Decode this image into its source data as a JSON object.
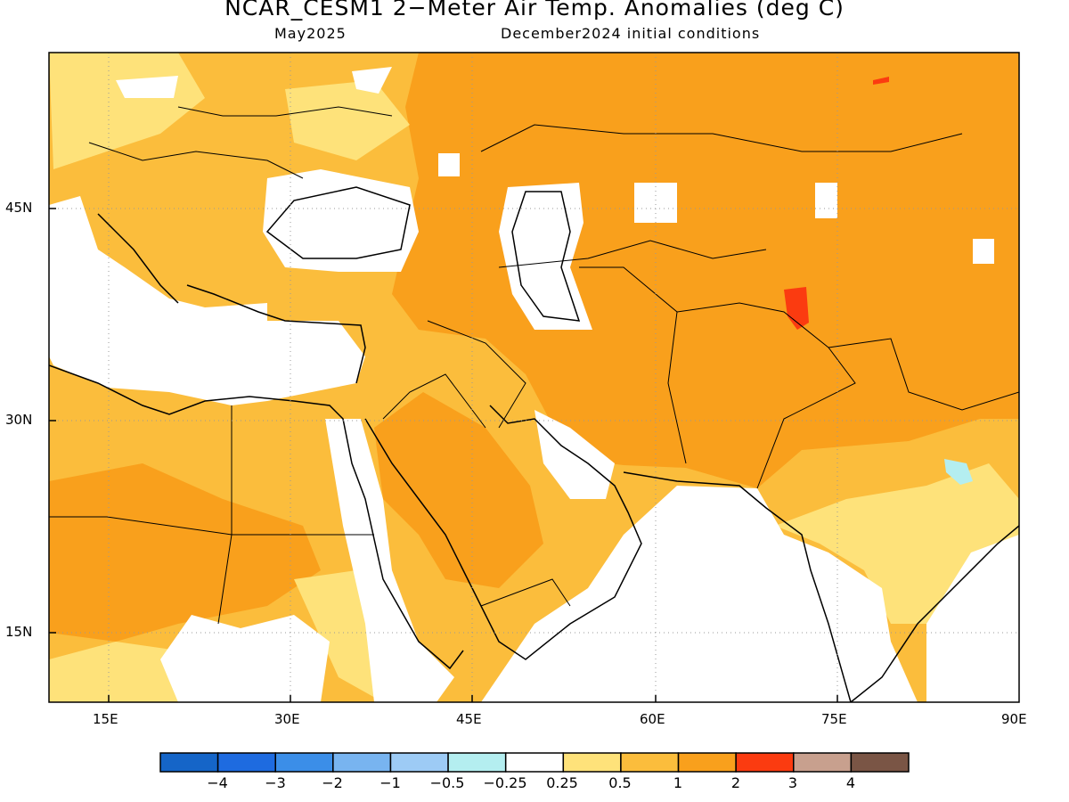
{
  "title": "NCAR_CESM1 2−Meter Air Temp. Anomalies (deg C)",
  "subtitle_left": "May2025",
  "subtitle_right": "December2024 initial conditions",
  "axes": {
    "x_ticks": [
      "15E",
      "30E",
      "45E",
      "60E",
      "75E",
      "90E"
    ],
    "y_ticks": [
      "45N",
      "30N",
      "15N"
    ],
    "lon_range": [
      10,
      90
    ],
    "lat_range": [
      10,
      56
    ]
  },
  "legend": {
    "colors": [
      "#1565c8",
      "#1e6be0",
      "#3b8ee8",
      "#78b4f0",
      "#9dcbf5",
      "#b4eef0",
      "#ffffff",
      "#fee27a",
      "#fbbd3c",
      "#f9a01c",
      "#fb3b10",
      "#c8a08e",
      "#7a5545"
    ],
    "labels": [
      "−4",
      "−3",
      "−2",
      "−1",
      "−0.5",
      "−0.25",
      "0.25",
      "0.5",
      "1",
      "2",
      "3",
      "4"
    ]
  }
}
